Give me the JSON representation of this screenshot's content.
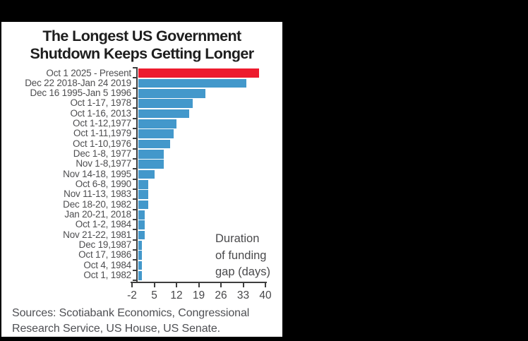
{
  "colors": {
    "background": "#000000",
    "panel": "#ffffff",
    "bar": "#4398CB",
    "highlight": "#ED1B2E",
    "axis": "#3e3e3e",
    "label": "#4e4e50"
  },
  "chart_data": {
    "type": "bar",
    "orientation": "horizontal",
    "title": "The Longest US Government Shutdown Keeps Getting Longer",
    "title_lines": [
      "The Longest US Government",
      "Shutdown Keeps Getting Longer"
    ],
    "categories": [
      "Oct 1 2025 - Present",
      "Dec 22 2018-Jan 24 2019",
      "Dec 16 1995-Jan 5 1996",
      "Oct 1-17, 1978",
      "Oct 1-16, 2013",
      "Oct 1-12,1977",
      "Oct 1-11,1979",
      "Oct 1-10,1976",
      "Dec 1-8, 1977",
      "Nov 1-8,1977",
      "Nov 14-18, 1995",
      "Oct 6-8, 1990",
      "Nov 11-13, 1983",
      "Dec 18-20, 1982",
      "Jan 20-21, 2018",
      "Oct 1-2, 1984",
      "Nov 21-22, 1981",
      "Dec 19,1987",
      "Oct 17, 1986",
      "Oct 4, 1984",
      "Oct 1, 1982"
    ],
    "values": [
      38,
      34,
      21,
      17,
      16,
      12,
      11,
      10,
      8,
      8,
      5,
      3,
      3,
      3,
      2,
      2,
      2,
      1,
      1,
      1,
      1
    ],
    "highlight_index": 0,
    "xlabel": "Duration of funding gap (days)",
    "annotation_lines": [
      "Duration",
      "of funding",
      "gap (days)"
    ],
    "xticks": [
      -2,
      5,
      12,
      19,
      26,
      33,
      40
    ],
    "xlim": [
      -2,
      40
    ],
    "grid": false,
    "source_lines": [
      "Sources: Scotiabank Economics, Congressional",
      "Research Service, US House, US Senate."
    ]
  }
}
